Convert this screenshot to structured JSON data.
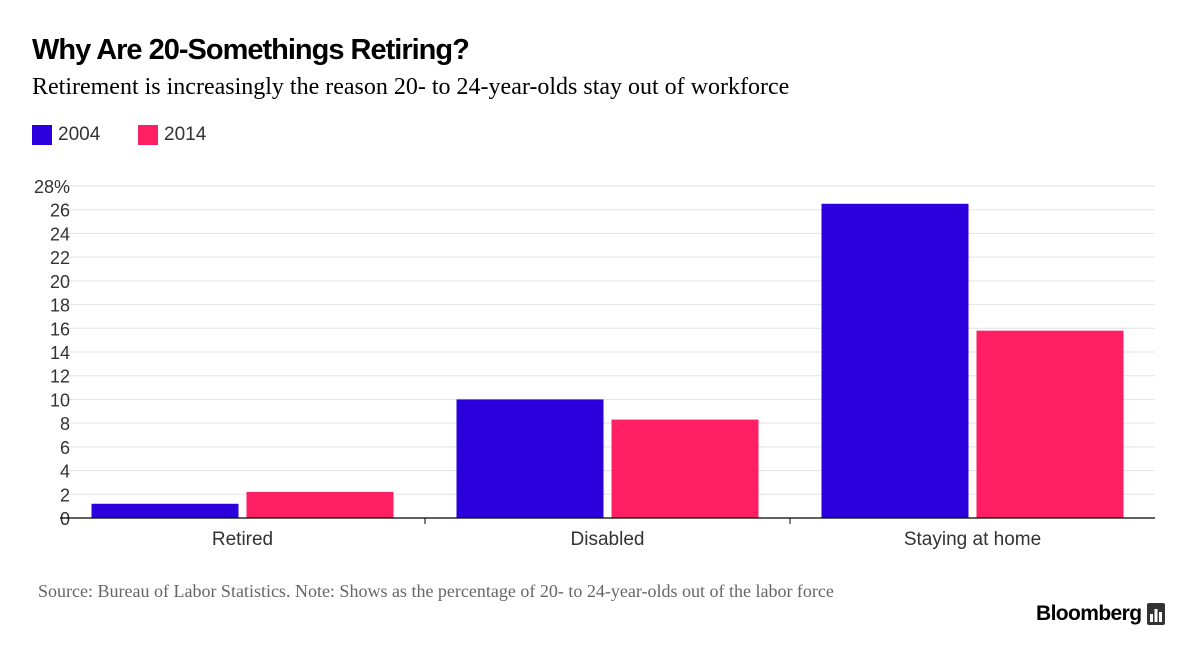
{
  "header": {
    "title": "Why Are 20-Somethings Retiring?",
    "subtitle": "Retirement is increasingly the reason 20- to 24-year-olds stay out of workforce"
  },
  "legend": [
    {
      "label": "2004",
      "color": "#2B00DC"
    },
    {
      "label": "2014",
      "color": "#FF1F65"
    }
  ],
  "chart_data": {
    "type": "bar",
    "categories": [
      "Retired",
      "Disabled",
      "Staying at home"
    ],
    "series": [
      {
        "name": "2004",
        "values": [
          1.2,
          10.0,
          26.5
        ],
        "color": "#2B00DC"
      },
      {
        "name": "2014",
        "values": [
          2.2,
          8.3,
          15.8
        ],
        "color": "#FF1F65"
      }
    ],
    "ylim": [
      0,
      28
    ],
    "yticks": [
      0,
      2,
      4,
      6,
      8,
      10,
      12,
      14,
      16,
      18,
      20,
      22,
      24,
      26,
      28
    ],
    "ytick_labels": [
      "0",
      "2",
      "4",
      "6",
      "8",
      "10",
      "12",
      "14",
      "16",
      "18",
      "20",
      "22",
      "24",
      "26",
      "28%"
    ],
    "grid": true,
    "legend_position": "top-left"
  },
  "footer": {
    "source": "Source: Bureau of Labor Statistics. Note: Shows as the percentage of 20- to 24-year-olds out of the labor force",
    "brand": "Bloomberg",
    "brand_icon": "bar-chart-icon"
  }
}
